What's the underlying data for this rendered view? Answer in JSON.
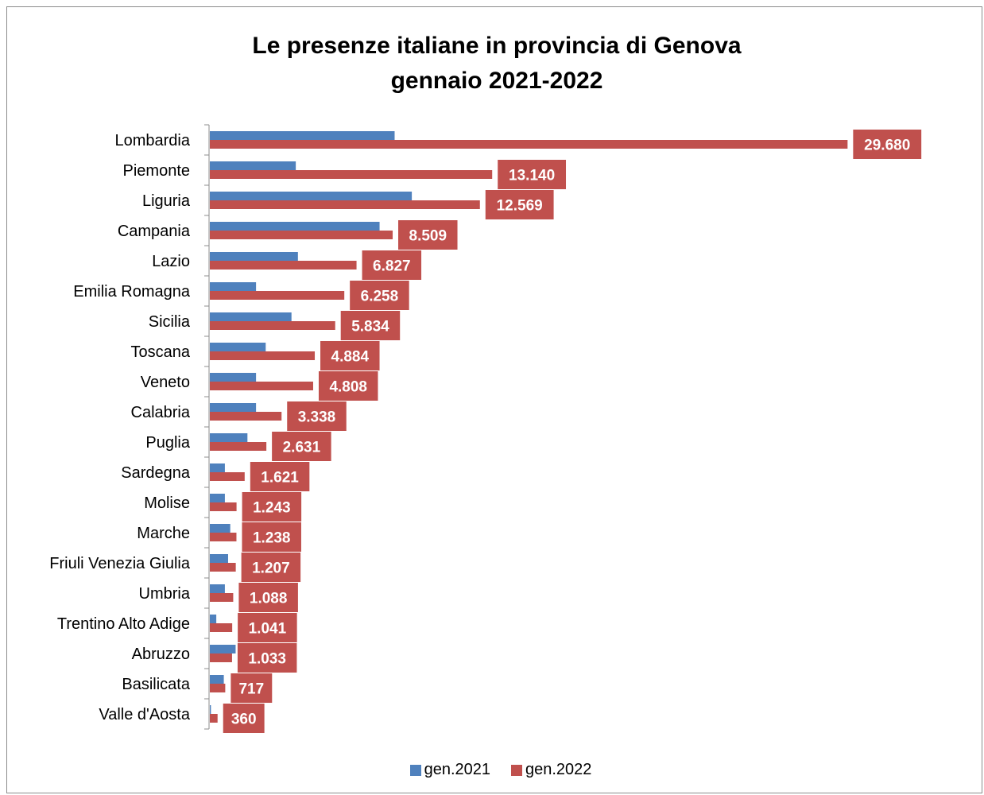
{
  "chart_data": {
    "type": "bar",
    "orientation": "horizontal",
    "title": "Le presenze italiane in provincia di Genova",
    "subtitle": "gennaio 2021-2022",
    "categories": [
      "Lombardia",
      "Piemonte",
      "Liguria",
      "Campania",
      "Lazio",
      "Emilia Romagna",
      "Sicilia",
      "Toscana",
      "Veneto",
      "Calabria",
      "Puglia",
      "Sardegna",
      "Molise",
      "Marche",
      "Friuli Venezia Giulia",
      "Umbria",
      "Trentino Alto Adige",
      "Abruzzo",
      "Basilicata",
      "Valle d'Aosta"
    ],
    "series": [
      {
        "name": "gen.2021",
        "color": "#4f81bd",
        "values": [
          8600,
          4000,
          9400,
          7900,
          4100,
          2150,
          3800,
          2600,
          2150,
          2150,
          1750,
          700,
          700,
          950,
          850,
          700,
          300,
          1200,
          650,
          50
        ]
      },
      {
        "name": "gen.2022",
        "color": "#c0504d",
        "values": [
          29680,
          13140,
          12569,
          8509,
          6827,
          6258,
          5834,
          4884,
          4808,
          3338,
          2631,
          1621,
          1243,
          1238,
          1207,
          1088,
          1041,
          1033,
          717,
          360
        ],
        "data_labels": [
          "29.680",
          "13.140",
          "12.569",
          "8.509",
          "6.827",
          "6.258",
          "5.834",
          "4.884",
          "4.808",
          "3.338",
          "2.631",
          "1.621",
          "1.243",
          "1.238",
          "1.207",
          "1.088",
          "1.041",
          "1.033",
          "717",
          "360"
        ]
      }
    ],
    "xlim": [
      0,
      30000
    ],
    "x_axis_visible": false,
    "grid": false,
    "legend": "bottom"
  }
}
